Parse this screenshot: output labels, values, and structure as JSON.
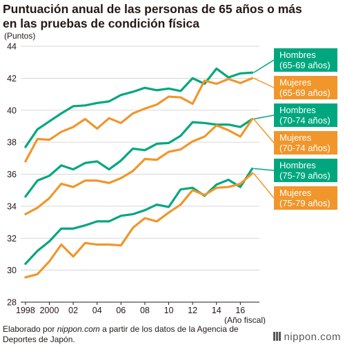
{
  "title_line1": "Puntuación anual de las personas de 65 años o más",
  "title_line2": "en las pruebas de condición física",
  "footer": {
    "prefix": "Elaborado por ",
    "source_site": "nippon.com",
    "suffix": " a partir de los datos de la Agencia de Deportes de Japón."
  },
  "brand": "nippon.com",
  "colors": {
    "hombres": "#00a77e",
    "mujeres": "#f0962b"
  },
  "chart_data": {
    "type": "line",
    "title": "Puntuación anual de las personas de 65 años o más en las pruebas de condición física",
    "ylabel": "(Puntos)",
    "xlabel": "(Año fiscal)",
    "ylim": [
      28,
      44
    ],
    "xlim": [
      1997.6,
      2017.6
    ],
    "yticks": [
      28,
      30,
      32,
      34,
      36,
      38,
      40,
      42,
      44
    ],
    "xticks": [
      {
        "value": 1998,
        "label": "1998"
      },
      {
        "value": 2000,
        "label": "2000"
      },
      {
        "value": 2002,
        "label": "02"
      },
      {
        "value": 2004,
        "label": "04"
      },
      {
        "value": 2006,
        "label": "06"
      },
      {
        "value": 2008,
        "label": "08"
      },
      {
        "value": 2010,
        "label": "10"
      },
      {
        "value": 2012,
        "label": "12"
      },
      {
        "value": 2014,
        "label": "14"
      },
      {
        "value": 2016,
        "label": "16"
      }
    ],
    "grid": true,
    "x": [
      1998,
      1999,
      2000,
      2001,
      2002,
      2003,
      2004,
      2005,
      2006,
      2007,
      2008,
      2009,
      2010,
      2011,
      2012,
      2013,
      2014,
      2015,
      2016,
      2017
    ],
    "series": [
      {
        "name": "Hombres (65-69 años)",
        "label_lines": [
          "Hombres",
          "(65-69 años)"
        ],
        "group": "hombres",
        "values": [
          37.7,
          38.8,
          39.3,
          39.8,
          40.25,
          40.3,
          40.45,
          40.55,
          40.95,
          41.15,
          41.4,
          41.25,
          41.35,
          41.2,
          42.0,
          41.65,
          42.6,
          42.05,
          42.3,
          42.35
        ]
      },
      {
        "name": "Mujeres (65-69 años)",
        "label_lines": [
          "Mujeres",
          "(65-69 años)"
        ],
        "group": "mujeres",
        "values": [
          36.8,
          38.2,
          38.15,
          38.65,
          38.95,
          39.45,
          38.85,
          39.5,
          39.2,
          39.8,
          40.1,
          40.35,
          40.85,
          40.8,
          40.4,
          41.85,
          41.65,
          41.95,
          41.7,
          42.0
        ]
      },
      {
        "name": "Hombres (70-74 años)",
        "label_lines": [
          "Hombres",
          "(70-74 años)"
        ],
        "group": "hombres",
        "values": [
          34.6,
          35.6,
          35.9,
          36.55,
          36.3,
          36.7,
          36.8,
          36.3,
          36.85,
          37.6,
          37.5,
          37.9,
          37.95,
          38.4,
          39.25,
          39.2,
          39.1,
          39.1,
          38.95,
          39.45
        ]
      },
      {
        "name": "Mujeres (70-74 años)",
        "label_lines": [
          "Mujeres",
          "(70-74 años)"
        ],
        "group": "mujeres",
        "values": [
          33.5,
          33.9,
          34.5,
          35.4,
          35.2,
          35.6,
          35.6,
          35.45,
          35.75,
          36.2,
          36.95,
          36.9,
          37.4,
          37.55,
          38.05,
          38.35,
          39.05,
          38.75,
          38.35,
          39.45
        ]
      },
      {
        "name": "Hombres (75-79 años)",
        "label_lines": [
          "Hombres",
          "(75-79 años)"
        ],
        "group": "hombres",
        "values": [
          30.4,
          31.2,
          31.8,
          32.6,
          32.6,
          32.8,
          33.05,
          33.05,
          33.4,
          33.5,
          33.75,
          34.1,
          33.95,
          35.05,
          35.15,
          34.65,
          35.35,
          35.65,
          35.2,
          36.35
        ]
      },
      {
        "name": "Mujeres (75-79 años)",
        "label_lines": [
          "Mujeres",
          "(75-79 años)"
        ],
        "group": "mujeres",
        "values": [
          29.55,
          29.75,
          30.55,
          31.6,
          30.85,
          31.7,
          31.6,
          31.6,
          31.55,
          32.65,
          33.25,
          33.05,
          33.6,
          34.1,
          35.0,
          34.7,
          35.15,
          35.2,
          35.4,
          36.05
        ]
      }
    ]
  }
}
